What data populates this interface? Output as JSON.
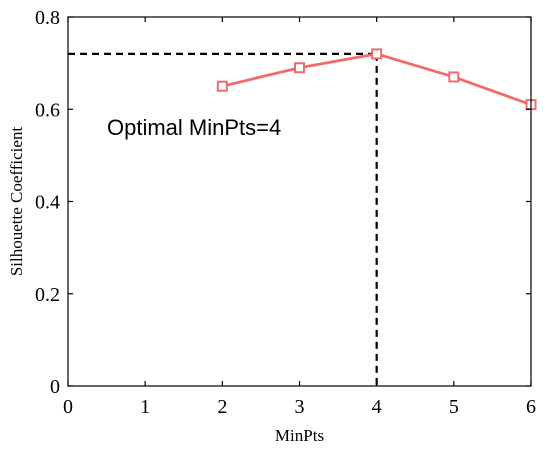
{
  "chart_data": {
    "type": "line",
    "title": "",
    "xlabel": "MinPts",
    "ylabel": "Silhouette Coefficient",
    "xlim": [
      0,
      6
    ],
    "ylim": [
      0,
      0.8
    ],
    "xticks": [
      0,
      1,
      2,
      3,
      4,
      5,
      6
    ],
    "yticks": [
      0,
      0.2,
      0.4,
      0.6,
      0.8
    ],
    "xtick_labels": [
      "0",
      "1",
      "2",
      "3",
      "4",
      "5",
      "6"
    ],
    "ytick_labels": [
      "0",
      "0.2",
      "0.4",
      "0.6",
      "0.8"
    ],
    "grid": false,
    "series": [
      {
        "x": [
          2,
          3,
          4,
          5,
          6
        ],
        "y": [
          0.65,
          0.69,
          0.72,
          0.67,
          0.61
        ],
        "color": "#f06b6b",
        "marker": "square"
      }
    ],
    "reference_lines": {
      "x": 4,
      "y": 0.72,
      "style": "dashed",
      "color": "#000000"
    },
    "annotation": "Optimal MinPts=4"
  }
}
